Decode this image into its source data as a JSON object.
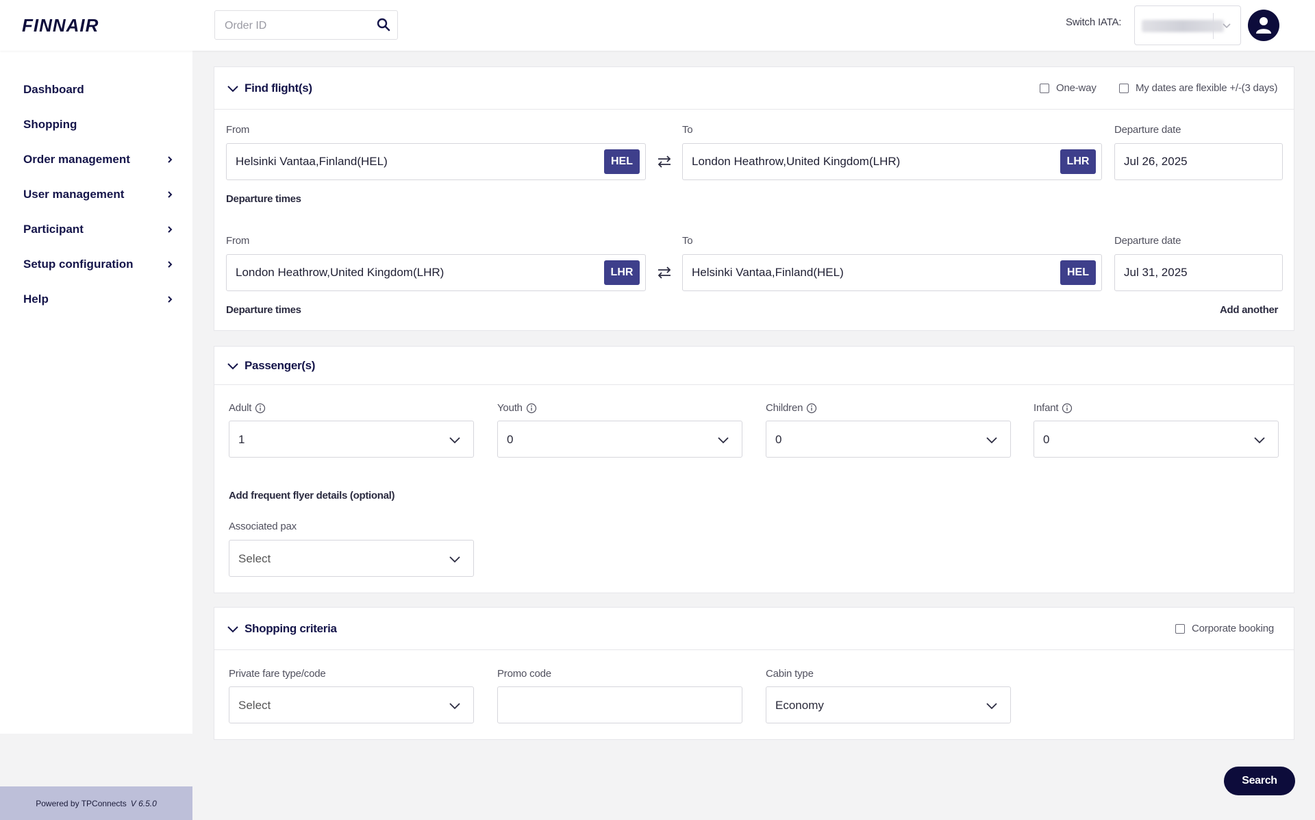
{
  "header": {
    "logo_text": "FINNAIR",
    "order_placeholder": "Order ID",
    "switch_iata_label": "Switch IATA:"
  },
  "sidebar": {
    "items": [
      {
        "label": "Dashboard",
        "has_arrow": false
      },
      {
        "label": "Shopping",
        "has_arrow": false
      },
      {
        "label": "Order management",
        "has_arrow": true
      },
      {
        "label": "User management",
        "has_arrow": true
      },
      {
        "label": "Participant",
        "has_arrow": true
      },
      {
        "label": "Setup configuration",
        "has_arrow": true
      },
      {
        "label": "Help",
        "has_arrow": true
      }
    ],
    "footer_text": "Powered by TPConnects",
    "footer_version": "V 6.5.0"
  },
  "find_flights": {
    "title": "Find flight(s)",
    "one_way_label": "One-way",
    "flexible_label": "My dates are flexible +/-(3 days)",
    "from_label": "From",
    "to_label": "To",
    "date_label": "Departure date",
    "departure_times_label": "Departure times",
    "add_another_label": "Add another",
    "legs": [
      {
        "from": "Helsinki Vantaa,Finland(HEL)",
        "from_code": "HEL",
        "to": "London Heathrow,United Kingdom(LHR)",
        "to_code": "LHR",
        "date": "Jul 26, 2025"
      },
      {
        "from": "London Heathrow,United Kingdom(LHR)",
        "from_code": "LHR",
        "to": "Helsinki Vantaa,Finland(HEL)",
        "to_code": "HEL",
        "date": "Jul 31, 2025"
      }
    ]
  },
  "passengers": {
    "title": "Passenger(s)",
    "adult_label": "Adult",
    "adult_value": "1",
    "youth_label": "Youth",
    "youth_value": "0",
    "children_label": "Children",
    "children_value": "0",
    "infant_label": "Infant",
    "infant_value": "0",
    "frequent_flyer_label": "Add frequent flyer details (optional)",
    "associated_pax_label": "Associated pax",
    "associated_pax_value": "Select"
  },
  "shopping_criteria": {
    "title": "Shopping criteria",
    "corporate_label": "Corporate booking",
    "private_fare_label": "Private fare type/code",
    "private_fare_value": "Select",
    "promo_label": "Promo code",
    "promo_value": "",
    "cabin_label": "Cabin type",
    "cabin_value": "Economy"
  },
  "search_label": "Search",
  "colors": {
    "brand": "#0d0c3b",
    "badge": "#3e3f8b",
    "footer": "#bdbfd9"
  }
}
